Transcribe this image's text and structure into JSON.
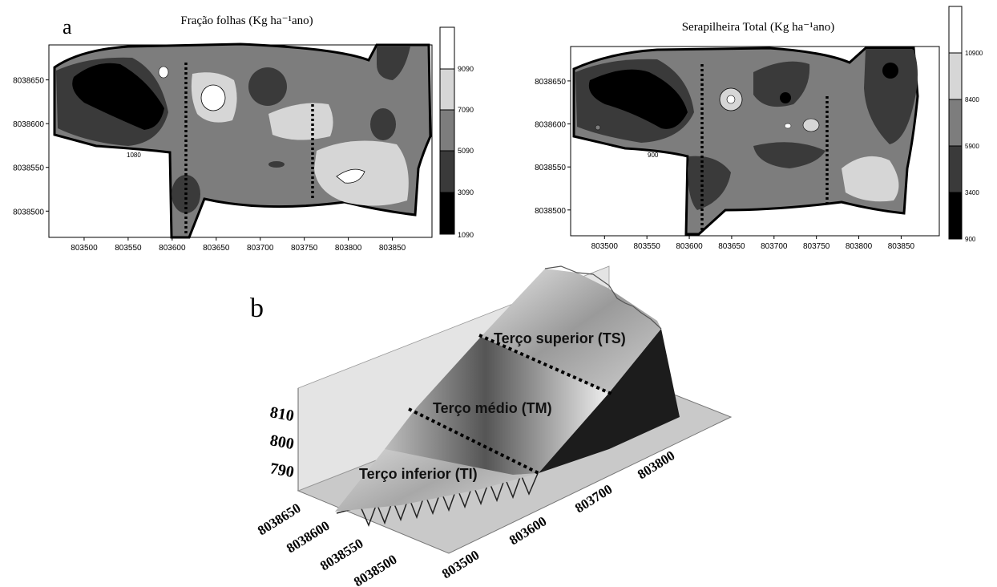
{
  "panel_a": {
    "letter": "a",
    "maps": [
      {
        "title": "Fração folhas (Kg ha⁻¹ano)",
        "x_ticks": [
          "803500",
          "803550",
          "803600",
          "803650",
          "803700",
          "803750",
          "803800",
          "803850"
        ],
        "y_ticks": [
          "8038650",
          "8038600",
          "8038550",
          "8038500"
        ],
        "contour_label": "1080",
        "legend": [
          "1090",
          "3090",
          "5090",
          "7090",
          "9090"
        ]
      },
      {
        "title": "Serapilheira Total (Kg ha⁻¹ano)",
        "x_ticks": [
          "803500",
          "803550",
          "803600",
          "803650",
          "803700",
          "803750",
          "803800",
          "803850"
        ],
        "y_ticks": [
          "8038650",
          "8038600",
          "8038550",
          "8038500"
        ],
        "contour_label": "900",
        "legend": [
          "900",
          "3400",
          "5900",
          "8400",
          "10900"
        ]
      }
    ]
  },
  "panel_b": {
    "letter": "b",
    "z_ticks": [
      "810",
      "800",
      "790"
    ],
    "y_ticks": [
      "8038650",
      "8038600",
      "8038550",
      "8038500"
    ],
    "x_ticks": [
      "803500",
      "803600",
      "803700",
      "803800"
    ],
    "zones": [
      "Terço superior (TS)",
      "Terço médio (TM)",
      "Terço inferior (TI)"
    ]
  },
  "chart_data": [
    {
      "type": "heatmap",
      "title": "Fração folhas (Kg ha⁻¹ano)",
      "xlim": [
        803460,
        803895
      ],
      "ylim": [
        8038470,
        8038690
      ],
      "x_ticks": [
        803500,
        803550,
        803600,
        803650,
        803700,
        803750,
        803800,
        803850
      ],
      "y_ticks": [
        8038500,
        8038550,
        8038600,
        8038650
      ],
      "color_levels": [
        1090,
        3090,
        5090,
        7090,
        9090
      ],
      "color_scale": [
        "#000000",
        "#3a3a3a",
        "#7d7d7d",
        "#d6d6d6",
        "#ffffff"
      ],
      "divider_lines_x": [
        803618,
        803765
      ]
    },
    {
      "type": "heatmap",
      "title": "Serapilheira Total (Kg ha⁻¹ano)",
      "xlim": [
        803460,
        803895
      ],
      "ylim": [
        8038470,
        8038690
      ],
      "x_ticks": [
        803500,
        803550,
        803600,
        803650,
        803700,
        803750,
        803800,
        803850
      ],
      "y_ticks": [
        8038500,
        8038550,
        8038600,
        8038650
      ],
      "color_levels": [
        900,
        3400,
        5900,
        8400,
        10900
      ],
      "color_scale": [
        "#000000",
        "#3a3a3a",
        "#7d7d7d",
        "#d6d6d6",
        "#ffffff"
      ],
      "divider_lines_x": [
        803618,
        803765
      ]
    }
  ]
}
